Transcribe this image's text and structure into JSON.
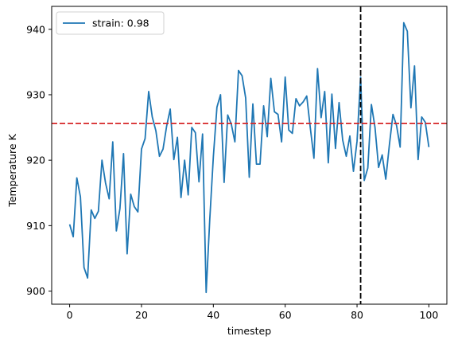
{
  "chart_data": {
    "type": "line",
    "title": "",
    "xlabel": "timestep",
    "ylabel": "Temperature K",
    "xlim": [
      -5,
      105
    ],
    "ylim": [
      898,
      943.5
    ],
    "xticks": [
      0,
      20,
      40,
      60,
      80,
      100
    ],
    "yticks": [
      900,
      910,
      920,
      930,
      940
    ],
    "grid": false,
    "legend_position": "upper-left",
    "series": [
      {
        "name": "strain: 0.98",
        "color": "#1f77b4",
        "x": [
          0,
          1,
          2,
          3,
          4,
          5,
          6,
          7,
          8,
          9,
          10,
          11,
          12,
          13,
          14,
          15,
          16,
          17,
          18,
          19,
          20,
          21,
          22,
          23,
          24,
          25,
          26,
          27,
          28,
          29,
          30,
          31,
          32,
          33,
          34,
          35,
          36,
          37,
          38,
          39,
          40,
          41,
          42,
          43,
          44,
          45,
          46,
          47,
          48,
          49,
          50,
          51,
          52,
          53,
          54,
          55,
          56,
          57,
          58,
          59,
          60,
          61,
          62,
          63,
          64,
          65,
          66,
          67,
          68,
          69,
          70,
          71,
          72,
          73,
          74,
          75,
          76,
          77,
          78,
          79,
          80,
          81,
          82,
          83,
          84,
          85,
          86,
          87,
          88,
          89,
          90,
          91,
          92,
          93,
          94,
          95,
          96,
          97,
          98,
          99,
          100
        ],
        "values": [
          910.2,
          908.3,
          917.3,
          914.4,
          903.6,
          902,
          912.4,
          911.1,
          912.2,
          920,
          916.5,
          914.1,
          922.8,
          909.2,
          912.6,
          921,
          905.7,
          914.8,
          912.9,
          912.1,
          921.7,
          923.3,
          930.5,
          926.6,
          924.5,
          920.6,
          921.7,
          925.2,
          927.8,
          920.1,
          923.5,
          914.3,
          920,
          914.7,
          925,
          924.2,
          916.7,
          924,
          899.8,
          910.9,
          920.5,
          928.1,
          930,
          916.6,
          926.9,
          925.5,
          922.8,
          933.7,
          932.9,
          929.5,
          917.4,
          928.6,
          919.4,
          919.4,
          928.3,
          923.6,
          932.5,
          927.4,
          927,
          922.8,
          932.7,
          924.6,
          924.1,
          929.4,
          928.3,
          928.9,
          929.8,
          924.9,
          920.3,
          934,
          926.5,
          930.5,
          919.6,
          930.1,
          921.8,
          928.8,
          923.1,
          920.6,
          923.7,
          918.3,
          922.9,
          932.7,
          916.9,
          918.8,
          928.5,
          925,
          918.9,
          920.8,
          917.1,
          922.3,
          927,
          925.3,
          922,
          941,
          939.7,
          928,
          934.4,
          920.1,
          926.6,
          925.8,
          922
        ]
      }
    ],
    "reference_lines": [
      {
        "orientation": "horizontal",
        "value": 925.6,
        "color": "#d62728",
        "style": "dashed"
      },
      {
        "orientation": "vertical",
        "value": 81,
        "color": "#000000",
        "style": "dashed"
      }
    ]
  }
}
